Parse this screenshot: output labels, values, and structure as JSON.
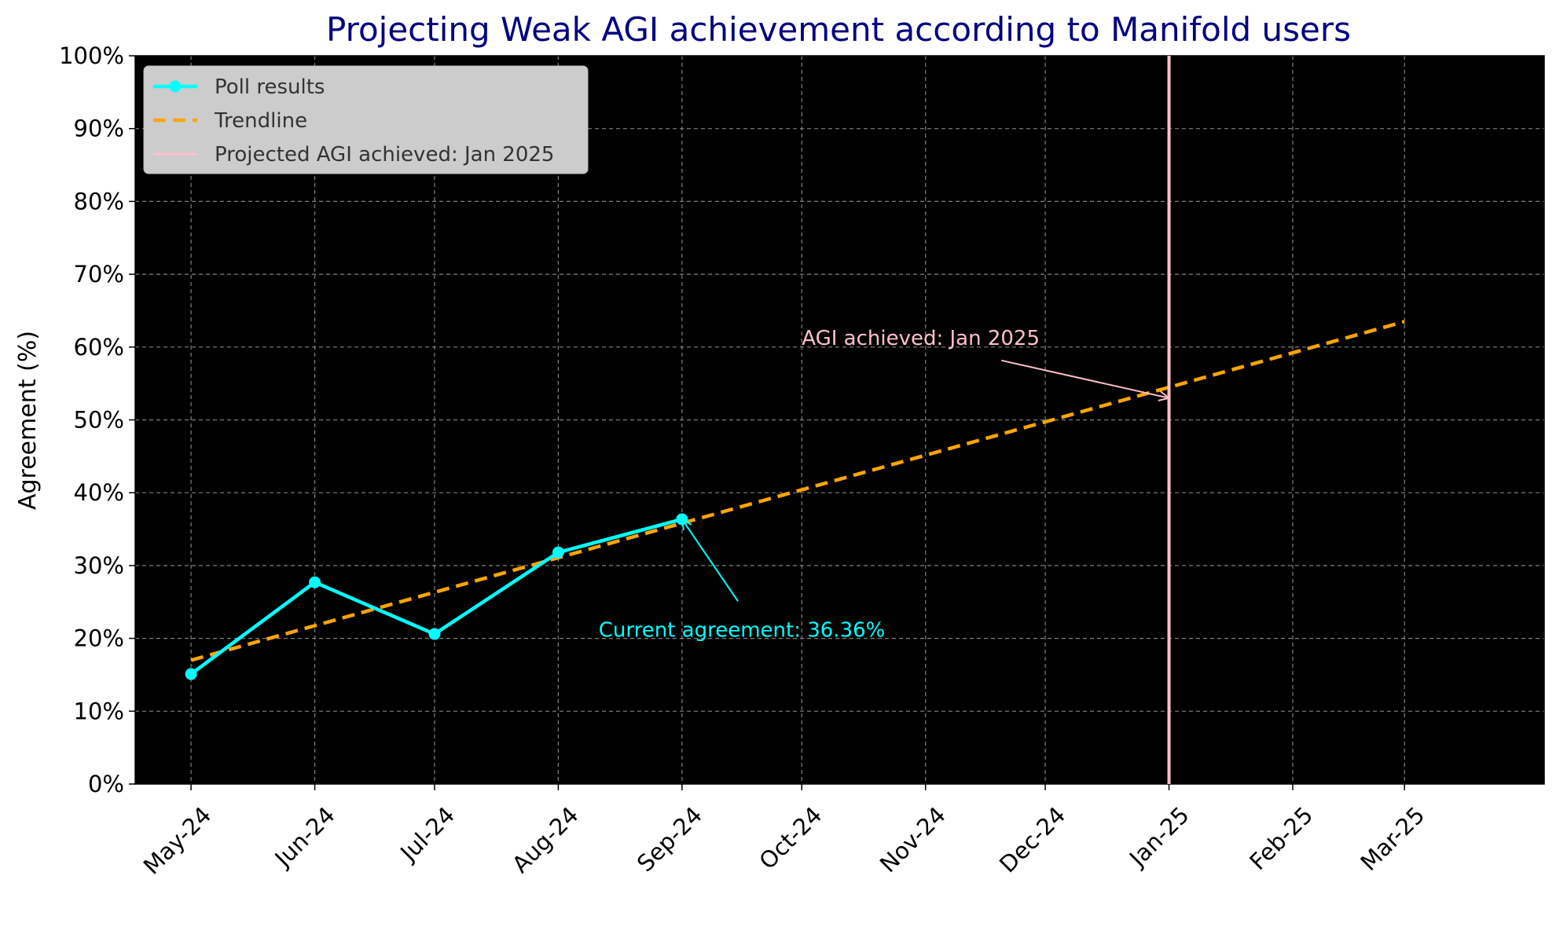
{
  "chart_data": {
    "type": "line",
    "title": "Projecting Weak AGI achievement according to Manifold users",
    "xlabel": "",
    "ylabel": "Agreement (%)",
    "x_ticks": [
      "May-24",
      "Jun-24",
      "Jul-24",
      "Aug-24",
      "Sep-24",
      "Oct-24",
      "Nov-24",
      "Dec-24",
      "Jan-25",
      "Feb-25",
      "Mar-25"
    ],
    "y_ticks": [
      "0%",
      "10%",
      "20%",
      "30%",
      "40%",
      "50%",
      "60%",
      "70%",
      "80%",
      "90%",
      "100%"
    ],
    "ylim": [
      0,
      100
    ],
    "xlim": [
      "2024-04-17",
      "2025-04-05"
    ],
    "grid": true,
    "legend_position": "top-left",
    "series": [
      {
        "name": "Poll results",
        "style": "line-with-markers",
        "color": "#00ffff",
        "points": [
          {
            "x": "2024-05-01",
            "y": 15.1
          },
          {
            "x": "2024-06-01",
            "y": 27.7
          },
          {
            "x": "2024-07-01",
            "y": 20.6
          },
          {
            "x": "2024-08-01",
            "y": 31.8
          },
          {
            "x": "2024-09-01",
            "y": 36.36
          }
        ]
      },
      {
        "name": "Trendline",
        "style": "dashed",
        "color": "#ffa500",
        "points": [
          {
            "x": "2024-05-01",
            "y": 17.0
          },
          {
            "x": "2025-03-01",
            "y": 63.5
          }
        ]
      },
      {
        "name": "Projected AGI achieved: Jan 2025",
        "style": "vline",
        "color": "#ffc0cb",
        "x": "2025-01-01"
      }
    ],
    "annotations": [
      {
        "text": "AGI achieved: Jan 2025",
        "color": "#ffc0cb",
        "point": {
          "x": "2025-01-01",
          "y": 53
        },
        "text_at": {
          "x": "2024-10-01",
          "y": 60
        }
      },
      {
        "text": "Current agreement: 36.36%",
        "color": "#00ffff",
        "point": {
          "x": "2024-09-01",
          "y": 36.36
        },
        "text_at": {
          "x": "2024-09-16",
          "y": 21
        }
      }
    ],
    "colors": {
      "title": "#000080",
      "plot_background": "#000000",
      "grid": "#808080",
      "legend_background": "#cccccc",
      "axis_text": "#000000"
    }
  }
}
